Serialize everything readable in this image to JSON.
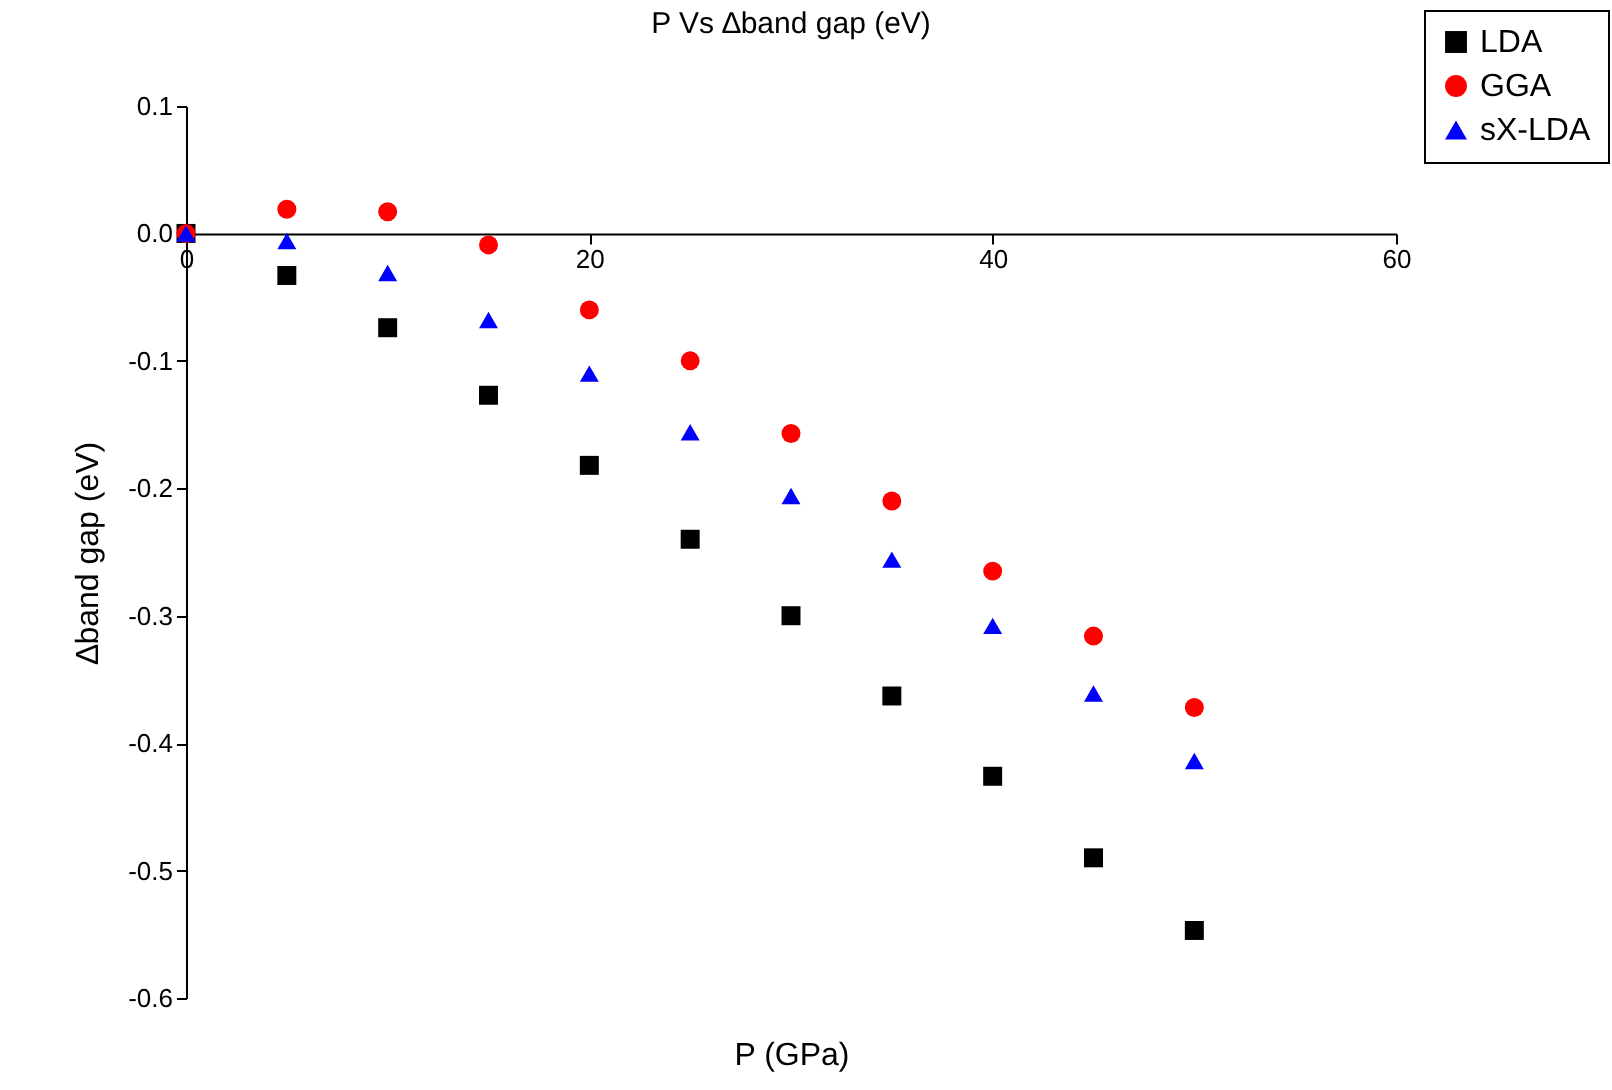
{
  "chart_data": {
    "type": "scatter",
    "title": "P Vs ∆band gap (eV)",
    "xlabel": "P (GPa)",
    "ylabel": "∆band gap (eV)",
    "x": [
      0,
      5,
      10,
      15,
      20,
      25,
      30,
      35,
      40,
      45,
      50
    ],
    "series": [
      {
        "name": "LDA",
        "color": "#000000",
        "marker": "square",
        "values": [
          0,
          -0.033,
          -0.074,
          -0.127,
          -0.182,
          -0.24,
          -0.3,
          -0.363,
          -0.426,
          -0.49,
          -0.547
        ]
      },
      {
        "name": "GGA",
        "color": "#ff0000",
        "marker": "circle",
        "values": [
          0,
          0.019,
          0.017,
          -0.009,
          -0.06,
          -0.1,
          -0.157,
          -0.21,
          -0.265,
          -0.316,
          -0.372
        ]
      },
      {
        "name": "sX-LDA",
        "color": "#0000ff",
        "marker": "triangle",
        "values": [
          0,
          -0.006,
          -0.031,
          -0.068,
          -0.11,
          -0.156,
          -0.206,
          -0.256,
          -0.308,
          -0.361,
          -0.414
        ]
      }
    ],
    "xlim": [
      0,
      60
    ],
    "xticks": [
      0,
      20,
      40,
      60
    ],
    "ylim": [
      -0.6,
      0.1
    ],
    "yticks": [
      -0.6,
      -0.5,
      -0.4,
      -0.3,
      -0.2,
      -0.1,
      {
        "value": 0,
        "label": "0.0"
      },
      0.1
    ],
    "grid": false,
    "legend": "top right"
  }
}
